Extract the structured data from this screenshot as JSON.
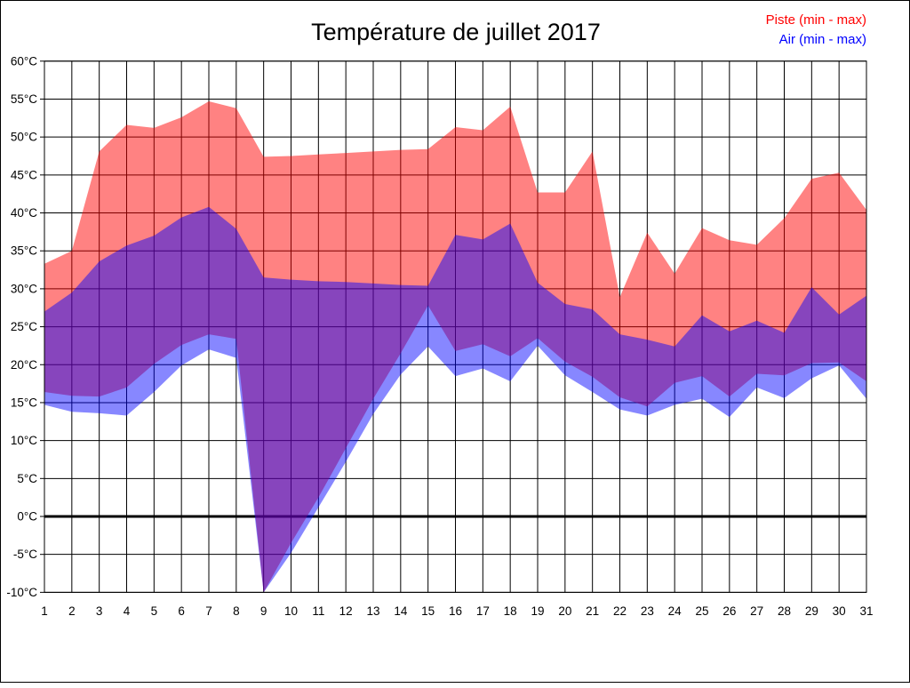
{
  "title": "Température de juillet 2017",
  "legend": {
    "piste": "Piste (min - max)",
    "air": "Air (min - max)"
  },
  "colors": {
    "piste": "#ff0000",
    "air": "#0000ff",
    "grid": "#000000",
    "zero_line": "#000000",
    "background": "#ffffff"
  },
  "chart_data": {
    "type": "area",
    "title": "Température de juillet 2017",
    "xlabel": "",
    "ylabel": "",
    "ylim": [
      -10,
      60
    ],
    "y_tick_step": 5,
    "grid": true,
    "legend_position": "top-right",
    "x": [
      1,
      2,
      3,
      4,
      5,
      6,
      7,
      8,
      9,
      10,
      11,
      12,
      13,
      14,
      15,
      16,
      17,
      18,
      19,
      20,
      21,
      22,
      23,
      24,
      25,
      26,
      27,
      28,
      29,
      30,
      31
    ],
    "x_ticks": [
      "1",
      "2",
      "3",
      "4",
      "5",
      "6",
      "7",
      "8",
      "9",
      "10",
      "11",
      "12",
      "13",
      "14",
      "15",
      "16",
      "17",
      "18",
      "19",
      "20",
      "21",
      "22",
      "23",
      "24",
      "25",
      "26",
      "27",
      "28",
      "29",
      "30",
      "31"
    ],
    "y_ticks": [
      "60°C",
      "55°C",
      "50°C",
      "45°C",
      "40°C",
      "35°C",
      "30°C",
      "25°C",
      "20°C",
      "15°C",
      "10°C",
      "5°C",
      "0°C",
      "-5°C",
      "-10°C"
    ],
    "series": [
      {
        "name": "Piste (min - max)",
        "color": "#ff0000",
        "min": [
          16.4,
          15.9,
          15.8,
          17.0,
          20.1,
          22.6,
          24.0,
          23.4,
          -10,
          -3.5,
          2.5,
          9.0,
          15.5,
          21.5,
          27.8,
          21.8,
          22.7,
          21.1,
          23.5,
          20.4,
          18.4,
          15.7,
          14.5,
          17.6,
          18.5,
          15.8,
          18.8,
          18.6,
          20.2,
          20.3,
          17.8
        ],
        "max": [
          33.3,
          35.0,
          48.1,
          51.6,
          51.2,
          52.6,
          54.7,
          53.8,
          47.4,
          47.5,
          47.7,
          47.9,
          48.1,
          48.3,
          48.4,
          51.3,
          50.9,
          54.0,
          42.7,
          42.7,
          48.1,
          28.9,
          37.4,
          32.0,
          38.0,
          36.4,
          35.8,
          39.3,
          44.5,
          45.3,
          40.4
        ]
      },
      {
        "name": "Air (min - max)",
        "color": "#0000ff",
        "min": [
          14.7,
          13.8,
          13.6,
          13.3,
          16.4,
          19.9,
          22.0,
          20.9,
          -10,
          -4.8,
          1.2,
          7.2,
          13.5,
          18.7,
          22.4,
          18.5,
          19.5,
          17.8,
          22.5,
          18.6,
          16.4,
          14.1,
          13.3,
          14.7,
          15.5,
          13.1,
          17.0,
          15.6,
          18.2,
          19.9,
          15.5
        ],
        "max": [
          27.0,
          29.5,
          33.6,
          35.7,
          37.0,
          39.4,
          40.8,
          37.9,
          31.5,
          31.2,
          31.0,
          30.9,
          30.7,
          30.5,
          30.4,
          37.1,
          36.5,
          38.6,
          30.8,
          28.0,
          27.3,
          24.0,
          23.3,
          22.4,
          26.5,
          24.4,
          25.8,
          24.2,
          30.2,
          26.6,
          29.1
        ]
      }
    ]
  }
}
